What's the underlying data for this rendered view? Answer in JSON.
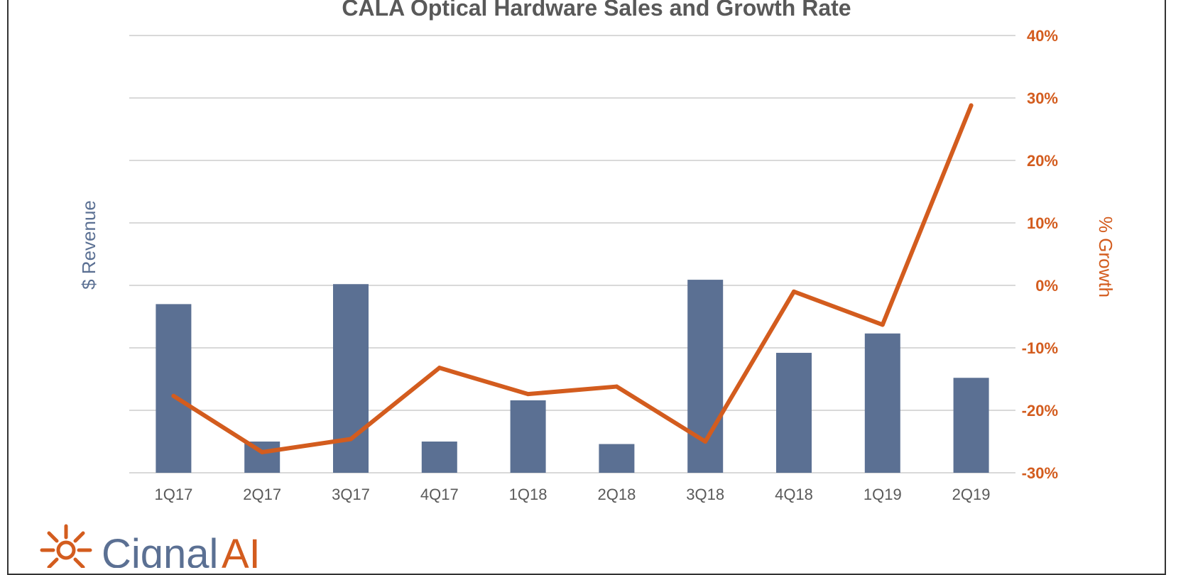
{
  "chart_data": {
    "type": "bar",
    "title": "CALA Optical Hardware Sales and Growth Rate",
    "categories": [
      "1Q17",
      "2Q17",
      "3Q17",
      "4Q17",
      "1Q18",
      "2Q18",
      "3Q18",
      "4Q18",
      "1Q19",
      "2Q19"
    ],
    "series": [
      {
        "name": "$ Revenue",
        "type": "bar",
        "axis": "left",
        "color": "#5b7093",
        "values": [
          27,
          5,
          30.2,
          5,
          11.6,
          4.6,
          30.9,
          19.2,
          22.3,
          15.2
        ]
      },
      {
        "name": "% Growth",
        "type": "line",
        "axis": "right",
        "color": "#d35c1e",
        "values": [
          -17.7,
          -26.7,
          -24.6,
          -13.2,
          -17.4,
          -16.2,
          -25,
          -1,
          -6.3,
          28.8
        ]
      }
    ],
    "ylabel": "$ Revenue",
    "y2label": "% Growth",
    "y2lim": [
      -30,
      40
    ],
    "y2ticks": [
      "-30%",
      "-20%",
      "-10%",
      "0%",
      "10%",
      "20%",
      "30%",
      "40%"
    ],
    "ylim": [
      -30,
      40
    ],
    "grid": true
  },
  "logo": {
    "name": "Cignal",
    "suffix": "AI",
    "icon": "sun-burst-icon"
  }
}
